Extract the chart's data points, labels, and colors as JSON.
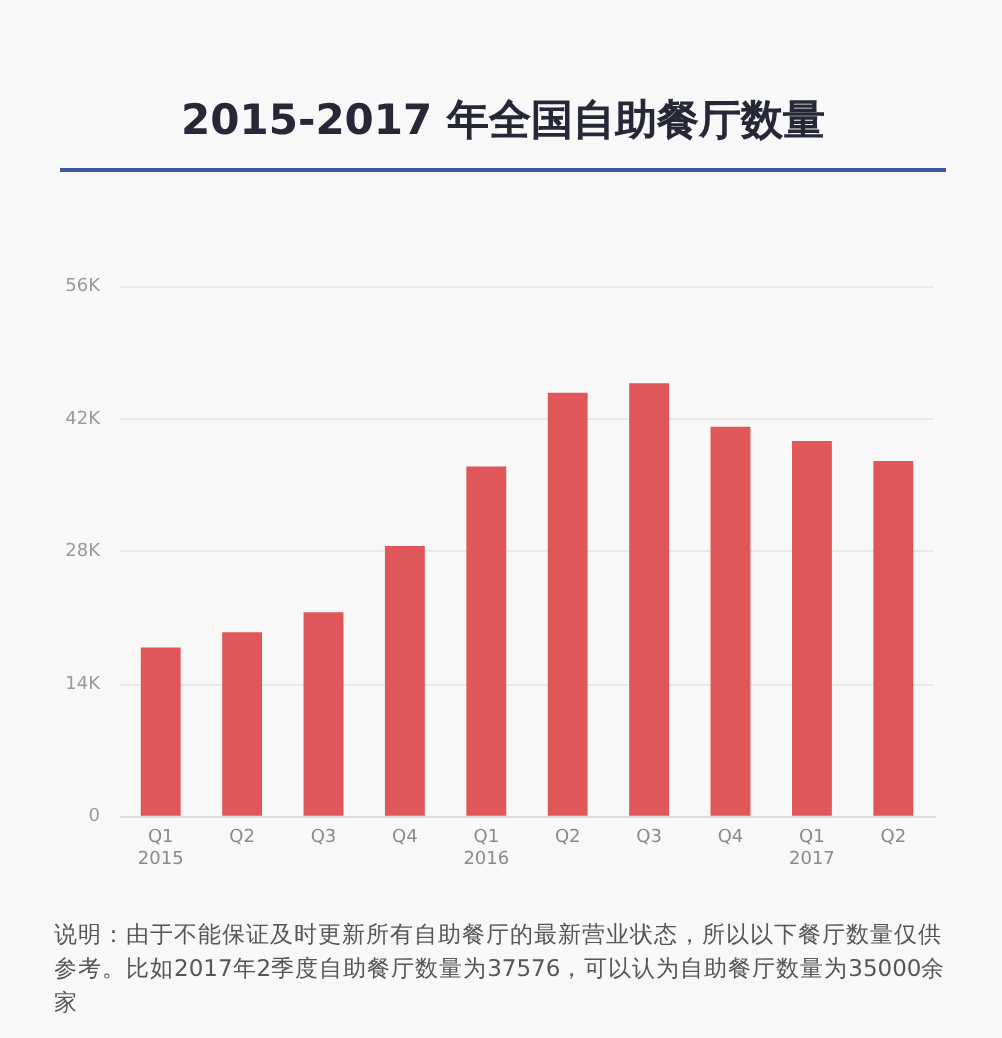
{
  "chart_data": {
    "type": "bar",
    "title": "2015-2017 年全国自助餐厅数量",
    "categories": [
      "Q1\n2015",
      "Q2",
      "Q3",
      "Q4",
      "Q1\n2016",
      "Q2",
      "Q3",
      "Q4",
      "Q1\n2017",
      "Q2"
    ],
    "values": [
      17900,
      19500,
      21600,
      28600,
      37000,
      44800,
      45800,
      41200,
      39700,
      37600
    ],
    "color": "#e0575a",
    "ylim": [
      0,
      56000
    ],
    "yticks": [
      {
        "value": 0,
        "label": "0"
      },
      {
        "value": 14000,
        "label": "14K"
      },
      {
        "value": 28000,
        "label": "28K"
      },
      {
        "value": 42000,
        "label": "42K"
      },
      {
        "value": 56000,
        "label": "56K"
      }
    ],
    "grid": "y",
    "annotations": [
      "说明：由于不能保证及时更新所有自助餐厅的最新营业状态，所以以下餐厅数量仅供参考。比如2017年2季度自助餐厅数量为37576，可以认为自助餐厅数量为35000余家"
    ]
  }
}
